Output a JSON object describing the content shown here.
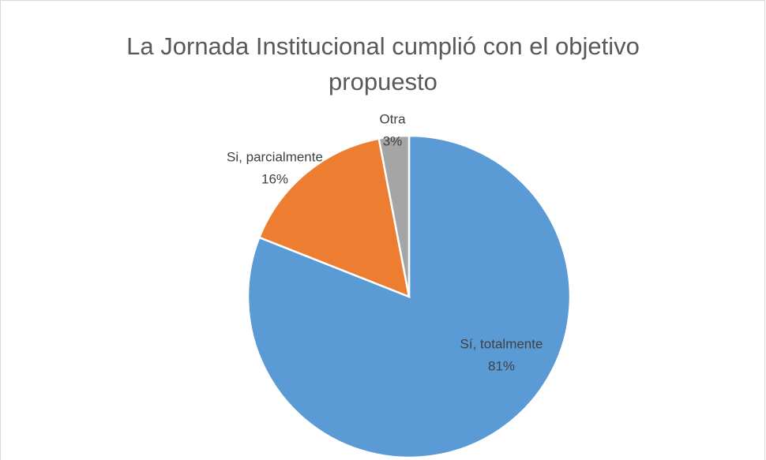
{
  "chart_data": {
    "type": "pie",
    "title": "La Jornada Institucional cumplió con el objetivo propuesto",
    "categories": [
      "Sí, totalmente",
      "Si, parcialmente",
      "Otra"
    ],
    "values": [
      81,
      16,
      3
    ],
    "value_labels": [
      "81%",
      "16%",
      "3%"
    ],
    "colors": [
      "#5b9bd5",
      "#ed7d31",
      "#a5a5a5"
    ]
  }
}
